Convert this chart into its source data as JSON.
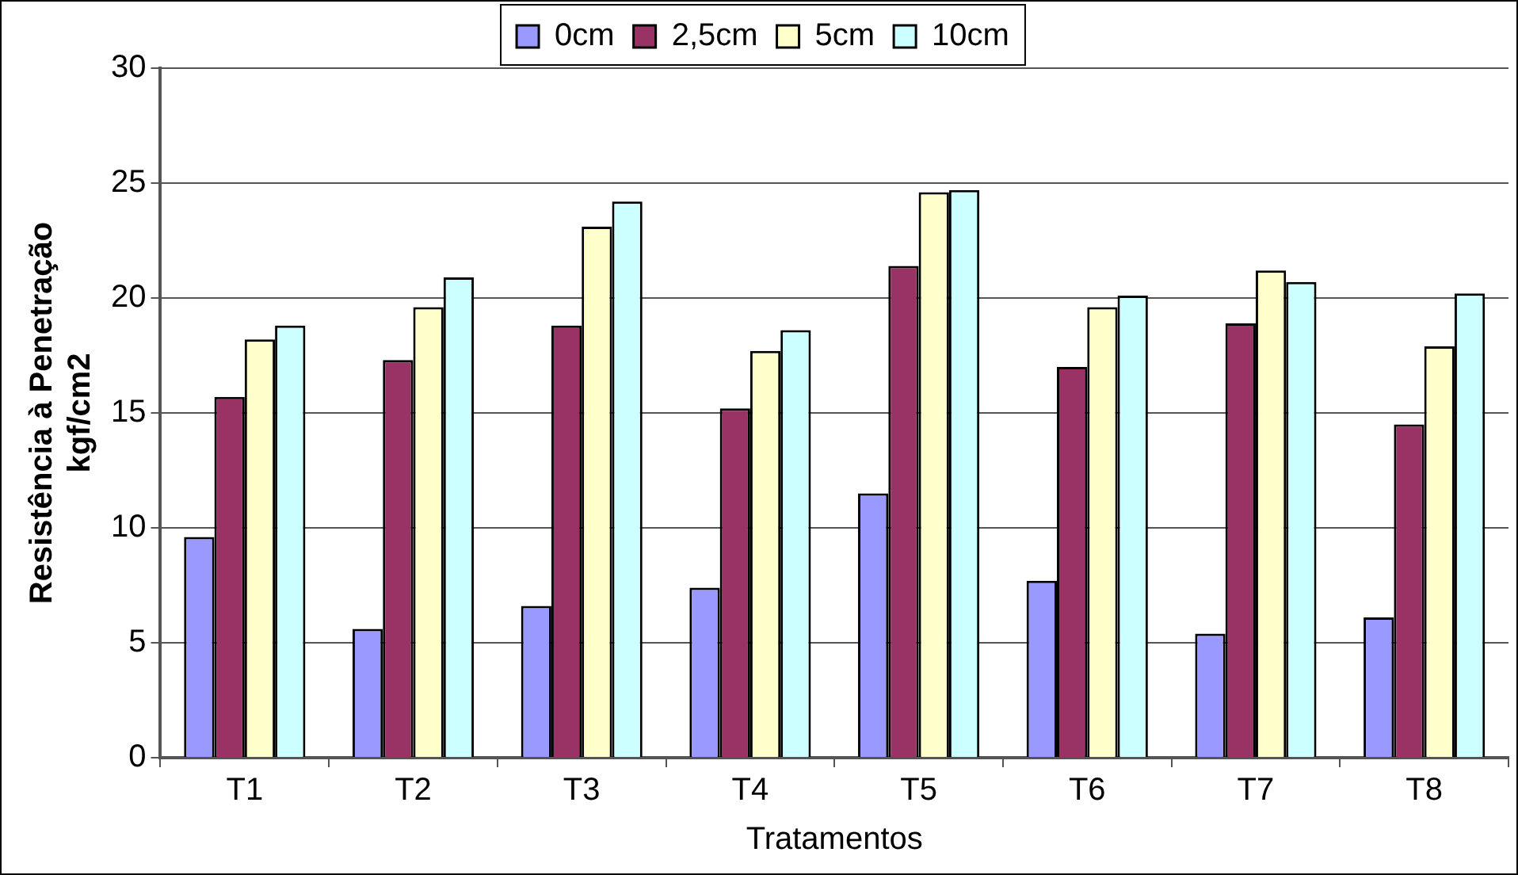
{
  "chart_data": {
    "type": "bar",
    "xlabel": "Tratamentos",
    "ylabel": "Resistência à Penetração\nkgf/cm2",
    "categories": [
      "T1",
      "T2",
      "T3",
      "T4",
      "T5",
      "T6",
      "T7",
      "T8"
    ],
    "series": [
      {
        "name": "0cm",
        "color": "#9999ff",
        "values": [
          9.6,
          5.6,
          6.6,
          7.4,
          11.5,
          7.7,
          5.4,
          6.1
        ]
      },
      {
        "name": "2,5cm",
        "color": "#993366",
        "values": [
          15.7,
          17.3,
          18.8,
          15.2,
          21.4,
          17.0,
          18.9,
          14.5
        ]
      },
      {
        "name": "5cm",
        "color": "#ffffcc",
        "values": [
          18.2,
          19.6,
          23.1,
          17.7,
          24.6,
          19.6,
          21.2,
          17.9
        ]
      },
      {
        "name": "10cm",
        "color": "#ccffff",
        "values": [
          18.8,
          20.9,
          24.2,
          18.6,
          24.7,
          20.1,
          20.7,
          20.2
        ]
      }
    ],
    "ylim": [
      0,
      30
    ],
    "yticks": [
      0,
      5,
      10,
      15,
      20,
      25,
      30
    ],
    "grid": "y",
    "legend": "top"
  }
}
